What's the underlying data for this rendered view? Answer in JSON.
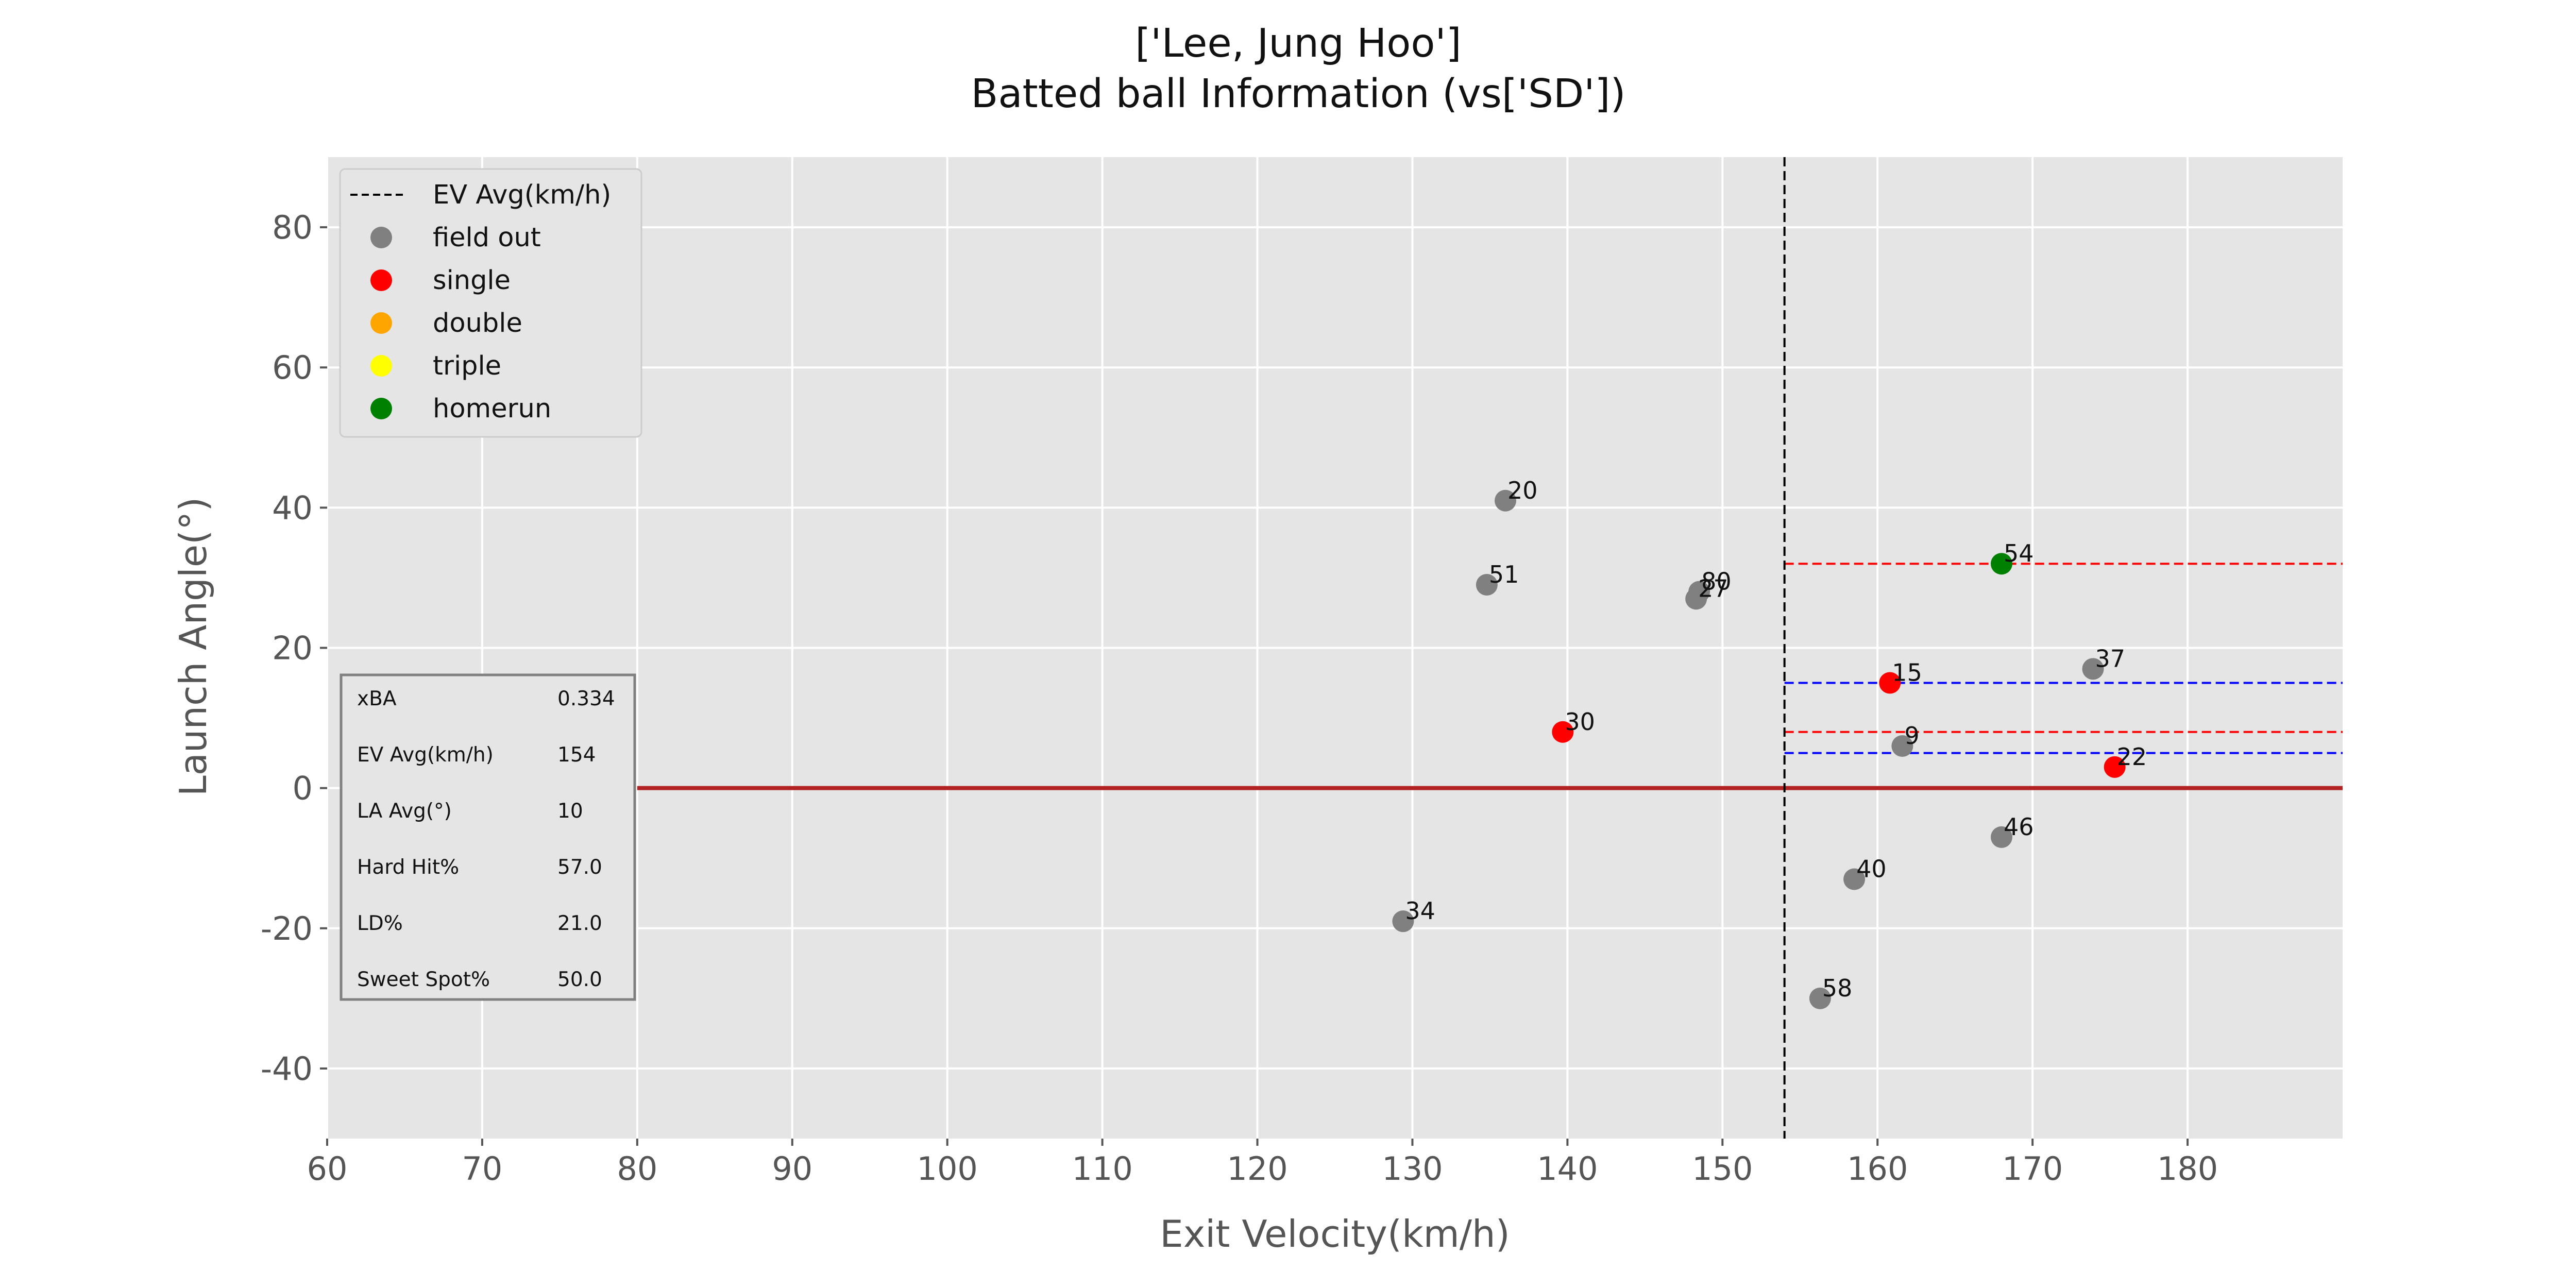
{
  "chart_data": {
    "type": "scatter",
    "title_line1": "['Lee, Jung Hoo']",
    "title_line2": "Batted ball Information (vs['SD'])",
    "xlabel": "Exit Velocity(km/h)",
    "ylabel": "Launch Angle(°)",
    "xlim": [
      60,
      190
    ],
    "ylim": [
      -50,
      90
    ],
    "xticks": [
      60,
      70,
      80,
      90,
      100,
      110,
      120,
      130,
      140,
      150,
      160,
      170,
      180
    ],
    "yticks": [
      -40,
      -20,
      0,
      20,
      40,
      60,
      80
    ],
    "grid": true,
    "background": "#E5E5E5",
    "colors": {
      "field out": "#808080",
      "single": "#FF0000",
      "double": "#FFA500",
      "triple": "#FFFF00",
      "homerun": "#008000",
      "zero_line": "#B22222",
      "ev_avg_line": "#000000"
    },
    "ev_avg": 154,
    "zero_line_y": 0,
    "ref_lines": [
      {
        "y": 32,
        "color": "#FF0000"
      },
      {
        "y": 15,
        "color": "#0000FF"
      },
      {
        "y": 8,
        "color": "#FF0000"
      },
      {
        "y": 5,
        "color": "#0000FF"
      }
    ],
    "legend": {
      "placement": "top-left",
      "entries": [
        "EV Avg(km/h)",
        "field out",
        "single",
        "double",
        "triple",
        "homerun"
      ]
    },
    "points": [
      {
        "label": "20",
        "x": 136.0,
        "y": 41,
        "result": "field out"
      },
      {
        "label": "51",
        "x": 134.8,
        "y": 29,
        "result": "field out"
      },
      {
        "label": "80",
        "x": 148.5,
        "y": 28,
        "result": "field out"
      },
      {
        "label": "27",
        "x": 148.3,
        "y": 27,
        "result": "field out"
      },
      {
        "label": "30",
        "x": 139.7,
        "y": 8,
        "result": "single"
      },
      {
        "label": "34",
        "x": 129.4,
        "y": -19,
        "result": "field out"
      },
      {
        "label": "54",
        "x": 168.0,
        "y": 32,
        "result": "homerun"
      },
      {
        "label": "37",
        "x": 173.9,
        "y": 17,
        "result": "field out"
      },
      {
        "label": "15",
        "x": 160.8,
        "y": 15,
        "result": "single"
      },
      {
        "label": "9",
        "x": 161.6,
        "y": 6,
        "result": "field out"
      },
      {
        "label": "22",
        "x": 175.3,
        "y": 3,
        "result": "single"
      },
      {
        "label": "46",
        "x": 168.0,
        "y": -7,
        "result": "field out"
      },
      {
        "label": "40",
        "x": 158.5,
        "y": -13,
        "result": "field out"
      },
      {
        "label": "58",
        "x": 156.3,
        "y": -30,
        "result": "field out"
      }
    ],
    "stats_table": [
      {
        "label": "xBA",
        "value": "0.334"
      },
      {
        "label": "EV Avg(km/h)",
        "value": "154"
      },
      {
        "label": "LA Avg(°)",
        "value": "10"
      },
      {
        "label": "Hard Hit%",
        "value": "57.0"
      },
      {
        "label": "LD%",
        "value": "21.0"
      },
      {
        "label": "Sweet Spot%",
        "value": "50.0"
      }
    ]
  }
}
